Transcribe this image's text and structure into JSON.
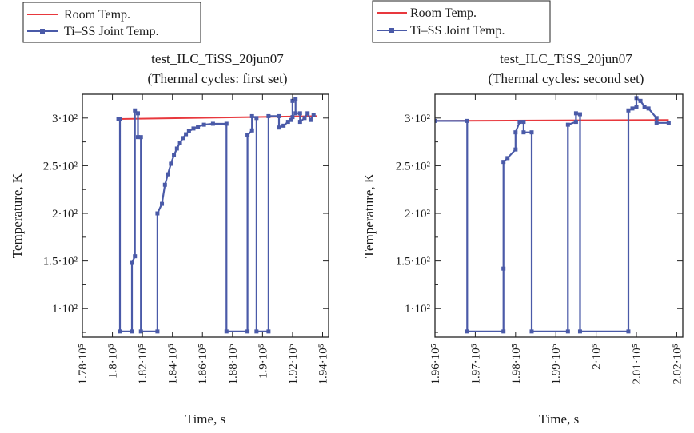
{
  "figure": {
    "colors": {
      "room": "#e8383d",
      "joint": "#4a5aa8",
      "axis": "#222222"
    },
    "legend": {
      "room_label": "Room Temp.",
      "joint_label": "Ti–SS Joint Temp."
    },
    "ylabel": "Temperature, K",
    "xlabel": "Time, s"
  },
  "chart_data": [
    {
      "type": "line",
      "title": "test_ILC_TiSS_20jun07",
      "subtitle": "(Thermal cycles: first set)",
      "xlabel": "Time, s",
      "ylabel": "Temperature, K",
      "xlim": [
        178000,
        194400
      ],
      "ylim": [
        70,
        325
      ],
      "grid": false,
      "legend_position": "above plot, top-left",
      "xticks": [
        {
          "value": 178000,
          "label": "1.78·10⁵"
        },
        {
          "value": 180000,
          "label": "1.8·10⁵"
        },
        {
          "value": 182000,
          "label": "1.82·10⁵"
        },
        {
          "value": 184000,
          "label": "1.84·10⁵"
        },
        {
          "value": 186000,
          "label": "1.86·10⁵"
        },
        {
          "value": 188000,
          "label": "1.88·10⁵"
        },
        {
          "value": 190000,
          "label": "1.9·10⁵"
        },
        {
          "value": 192000,
          "label": "1.92·10⁵"
        },
        {
          "value": 194000,
          "label": "1.94·10⁵"
        }
      ],
      "yticks": [
        {
          "value": 100,
          "label": "1·10²"
        },
        {
          "value": 150,
          "label": "1.5·10²"
        },
        {
          "value": 200,
          "label": "2·10²"
        },
        {
          "value": 250,
          "label": "2.5·10²"
        },
        {
          "value": 300,
          "label": "3·10²"
        }
      ],
      "series": [
        {
          "name": "Room Temp.",
          "step": false,
          "markers": false,
          "points": [
            [
              180400,
              299
            ],
            [
              193600,
              302
            ]
          ]
        },
        {
          "name": "Ti–SS Joint Temp.",
          "step": true,
          "markers": true,
          "points": [
            [
              180400,
              299
            ],
            [
              180500,
              299
            ],
            [
              180500,
              76
            ],
            [
              181300,
              76
            ],
            [
              181300,
              148
            ],
            [
              181500,
              155
            ],
            [
              181500,
              308
            ],
            [
              181700,
              305
            ],
            [
              181700,
              280
            ],
            [
              181900,
              280
            ],
            [
              181900,
              76
            ],
            [
              183000,
              76
            ],
            [
              183000,
              200
            ],
            [
              183300,
              210
            ],
            [
              183500,
              230
            ],
            [
              183700,
              241
            ],
            [
              183900,
              252
            ],
            [
              184100,
              261
            ],
            [
              184300,
              268
            ],
            [
              184500,
              274
            ],
            [
              184700,
              279
            ],
            [
              184900,
              283
            ],
            [
              185100,
              286
            ],
            [
              185400,
              289
            ],
            [
              185700,
              291
            ],
            [
              186100,
              293
            ],
            [
              186700,
              294
            ],
            [
              187600,
              294
            ],
            [
              187600,
              76
            ],
            [
              189000,
              76
            ],
            [
              189000,
              282
            ],
            [
              189300,
              287
            ],
            [
              189300,
              302
            ],
            [
              189600,
              300
            ],
            [
              189600,
              76
            ],
            [
              190400,
              76
            ],
            [
              190400,
              302
            ],
            [
              191100,
              302
            ],
            [
              191100,
              290
            ],
            [
              191400,
              292
            ],
            [
              191700,
              296
            ],
            [
              191900,
              298
            ],
            [
              192000,
              301
            ],
            [
              192000,
              318
            ],
            [
              192200,
              320
            ],
            [
              192200,
              305
            ],
            [
              192500,
              305
            ],
            [
              192500,
              296
            ],
            [
              192800,
              300
            ],
            [
              193000,
              305
            ],
            [
              193200,
              298
            ],
            [
              193400,
              303
            ]
          ]
        }
      ]
    },
    {
      "type": "line",
      "title": "test_ILC_TiSS_20jun07",
      "subtitle": "(Thermal cycles: second set)",
      "xlabel": "Time, s",
      "ylabel": "Temperature, K",
      "xlim": [
        196000,
        202150
      ],
      "ylim": [
        70,
        325
      ],
      "grid": false,
      "legend_position": "above plot, top-left",
      "xticks": [
        {
          "value": 196000,
          "label": "1.96·10⁵"
        },
        {
          "value": 197000,
          "label": "1.97·10⁵"
        },
        {
          "value": 198000,
          "label": "1.98·10⁵"
        },
        {
          "value": 199000,
          "label": "1.99·10⁵"
        },
        {
          "value": 200000,
          "label": "2·10⁵"
        },
        {
          "value": 201000,
          "label": "2.01·10⁵"
        },
        {
          "value": 202000,
          "label": "2.02·10⁵"
        }
      ],
      "yticks": [
        {
          "value": 100,
          "label": "1·10²"
        },
        {
          "value": 150,
          "label": "1.5·10²"
        },
        {
          "value": 200,
          "label": "2·10²"
        },
        {
          "value": 250,
          "label": "2.5·10²"
        },
        {
          "value": 300,
          "label": "3·10²"
        }
      ],
      "series": [
        {
          "name": "Room Temp.",
          "step": false,
          "markers": false,
          "points": [
            [
              196000,
              297
            ],
            [
              201800,
              298
            ]
          ]
        },
        {
          "name": "Ti–SS Joint Temp.",
          "step": true,
          "markers": true,
          "points": [
            [
              196000,
              297
            ],
            [
              196800,
              297
            ],
            [
              196800,
              76
            ],
            [
              197700,
              76
            ],
            [
              197700,
              142
            ],
            [
              197700,
              254
            ],
            [
              197800,
              258
            ],
            [
              198000,
              267
            ],
            [
              198000,
              285
            ],
            [
              198100,
              296
            ],
            [
              198200,
              296
            ],
            [
              198200,
              285
            ],
            [
              198400,
              285
            ],
            [
              198400,
              76
            ],
            [
              199300,
              76
            ],
            [
              199300,
              293
            ],
            [
              199500,
              296
            ],
            [
              199500,
              305
            ],
            [
              199600,
              304
            ],
            [
              199600,
              76
            ],
            [
              200800,
              76
            ],
            [
              200800,
              308
            ],
            [
              200900,
              310
            ],
            [
              201000,
              312
            ],
            [
              201000,
              321
            ],
            [
              201100,
              318
            ],
            [
              201200,
              312
            ],
            [
              201300,
              310
            ],
            [
              201500,
              300
            ],
            [
              201500,
              295
            ],
            [
              201800,
              295
            ]
          ]
        }
      ]
    }
  ]
}
